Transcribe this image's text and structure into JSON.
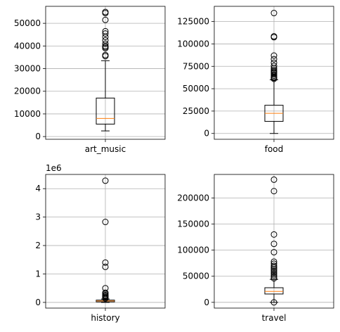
{
  "chart_data": [
    {
      "type": "boxplot",
      "xlabel": "art_music",
      "ylim": [
        -1200,
        57500
      ],
      "yticks": [
        0,
        10000,
        20000,
        30000,
        40000,
        50000
      ],
      "ytick_labels": [
        "0",
        "10000",
        "20000",
        "30000",
        "40000",
        "50000"
      ],
      "grid": true,
      "box": {
        "whisker_low": 2500,
        "q1": 5500,
        "median": 8000,
        "q3": 17000,
        "whisker_high": 33500,
        "fliers": [
          35500,
          36000,
          39000,
          39500,
          40000,
          41000,
          42500,
          44000,
          45500,
          46500,
          51500,
          54500,
          55000
        ]
      }
    },
    {
      "type": "boxplot",
      "xlabel": "food",
      "ylim": [
        -6500,
        142000
      ],
      "yticks": [
        0,
        25000,
        50000,
        75000,
        100000,
        125000
      ],
      "ytick_labels": [
        "0",
        "25000",
        "50000",
        "75000",
        "100000",
        "125000"
      ],
      "grid": true,
      "box": {
        "whisker_low": 0,
        "q1": 13500,
        "median": 22500,
        "q3": 31500,
        "whisker_high": 60000,
        "fliers": [
          61000,
          62000,
          63000,
          64500,
          66000,
          67500,
          68500,
          69500,
          71000,
          73000,
          75500,
          79000,
          83000,
          87000,
          107500,
          108500,
          134500
        ]
      }
    },
    {
      "type": "boxplot",
      "xlabel": "history",
      "offset_text": "1e6",
      "ylim": [
        -200000,
        4500000
      ],
      "yticks": [
        0,
        1000000,
        2000000,
        3000000,
        4000000
      ],
      "ytick_labels": [
        "0",
        "1",
        "2",
        "3",
        "4"
      ],
      "grid": true,
      "box": {
        "whisker_low": 0,
        "q1": 20000,
        "median": 50000,
        "q3": 80000,
        "whisker_high": 120000,
        "fliers": [
          140000,
          170000,
          200000,
          230000,
          260000,
          300000,
          340000,
          500000,
          1250000,
          1400000,
          2830000,
          4280000
        ]
      }
    },
    {
      "type": "boxplot",
      "xlabel": "travel",
      "ylim": [
        -11000,
        245000
      ],
      "yticks": [
        0,
        50000,
        100000,
        150000,
        200000
      ],
      "ytick_labels": [
        "0",
        "50000",
        "100000",
        "150000",
        "200000"
      ],
      "grid": true,
      "box": {
        "whisker_low": 0,
        "q1": 16000,
        "median": 21000,
        "q3": 28000,
        "whisker_high": 44000,
        "fliers": [
          0,
          46000,
          49000,
          52000,
          55000,
          58000,
          61000,
          64000,
          67000,
          70000,
          74000,
          78000,
          96000,
          112000,
          130000,
          213000,
          235000
        ]
      }
    }
  ]
}
